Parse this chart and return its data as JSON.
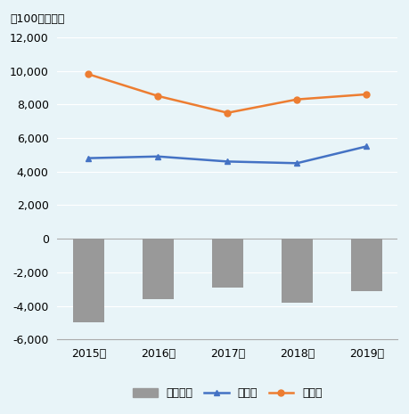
{
  "years": [
    "2015年",
    "2016年",
    "2017年",
    "2018年",
    "2019年"
  ],
  "exports": [
    4800,
    4900,
    4600,
    4500,
    5500
  ],
  "imports": [
    9800,
    8500,
    7500,
    8300,
    8600
  ],
  "trade_balance": [
    -5000,
    -3600,
    -2900,
    -3800,
    -3100
  ],
  "export_color": "#4472c4",
  "import_color": "#ed7d31",
  "bar_color": "#999999",
  "background_color": "#e8f4f8",
  "ylabel_text": "（100万ドル）",
  "ylim_min": -6000,
  "ylim_max": 12000,
  "yticks": [
    -6000,
    -4000,
    -2000,
    0,
    2000,
    4000,
    6000,
    8000,
    10000,
    12000
  ],
  "legend_bar": "貿易収支",
  "legend_export": "輸出額",
  "legend_import": "輸入額",
  "bar_width": 0.45,
  "grid_color": "#ffffff",
  "tick_fontsize": 9,
  "legend_fontsize": 9,
  "annotation_fontsize": 9
}
